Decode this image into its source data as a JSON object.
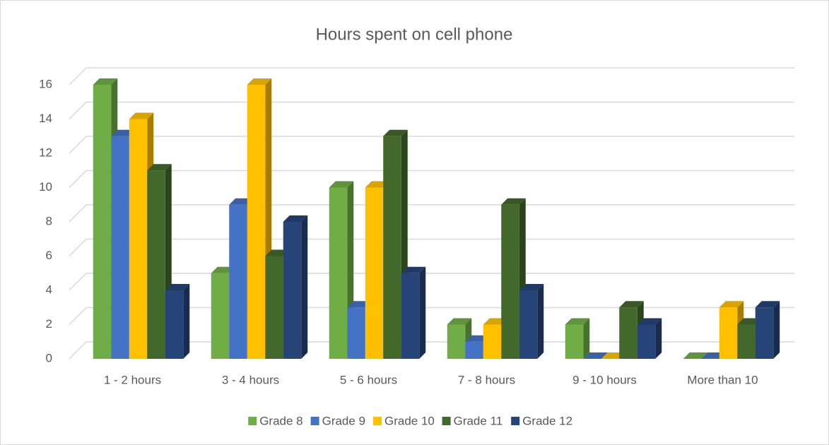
{
  "chart_data": {
    "type": "bar3d",
    "title": "Hours spent on cell phone",
    "categories": [
      "1 - 2 hours",
      "3 - 4 hours",
      "5 - 6 hours",
      "7 - 8 hours",
      "9 - 10 hours",
      "More than 10"
    ],
    "series": [
      {
        "name": "Grade 8",
        "color": "#70ad47",
        "values": [
          16,
          5,
          10,
          2,
          2,
          0
        ]
      },
      {
        "name": "Grade 9",
        "color": "#4472c4",
        "values": [
          13,
          9,
          3,
          1,
          0,
          0
        ]
      },
      {
        "name": "Grade 10",
        "color": "#ffc000",
        "values": [
          14,
          16,
          10,
          2,
          0,
          3
        ]
      },
      {
        "name": "Grade 11",
        "color": "#43682b",
        "values": [
          11,
          6,
          13,
          9,
          3,
          2
        ]
      },
      {
        "name": "Grade 12",
        "color": "#264478",
        "values": [
          4,
          8,
          5,
          4,
          2,
          3
        ]
      }
    ],
    "ylim": [
      0,
      16
    ],
    "yticks": [
      0,
      2,
      4,
      6,
      8,
      10,
      12,
      14,
      16
    ],
    "grid": true,
    "legend": "bottom"
  }
}
